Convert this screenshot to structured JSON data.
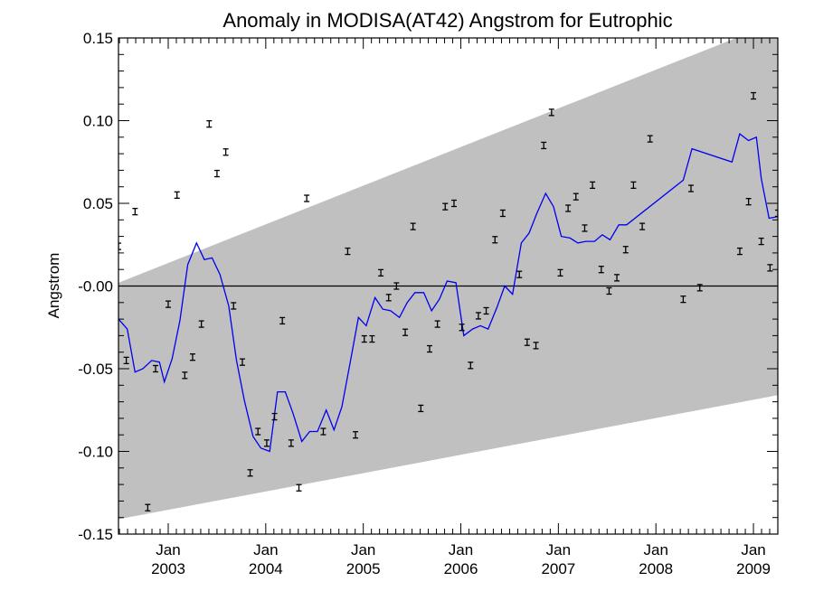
{
  "chart_data": {
    "type": "line",
    "title": "Anomaly in MODISA(AT42) Angstrom for Eutrophic",
    "ylabel": "Angstrom",
    "xlabel": "",
    "xlim": [
      2002.49,
      2009.25
    ],
    "ylim": [
      -0.15,
      0.15
    ],
    "y_ticks": [
      {
        "value": 0.15,
        "label": "0.15"
      },
      {
        "value": 0.1,
        "label": "0.10"
      },
      {
        "value": 0.05,
        "label": "0.05"
      },
      {
        "value": 0.0,
        "label": "-0.00"
      },
      {
        "value": -0.05,
        "label": "-0.05"
      },
      {
        "value": -0.1,
        "label": "-0.10"
      },
      {
        "value": -0.15,
        "label": "-0.15"
      }
    ],
    "x_ticks": [
      {
        "value": 2003.0,
        "month": "Jan",
        "year": "2003"
      },
      {
        "value": 2004.0,
        "month": "Jan",
        "year": "2004"
      },
      {
        "value": 2005.0,
        "month": "Jan",
        "year": "2005"
      },
      {
        "value": 2006.0,
        "month": "Jan",
        "year": "2006"
      },
      {
        "value": 2007.0,
        "month": "Jan",
        "year": "2007"
      },
      {
        "value": 2008.0,
        "month": "Jan",
        "year": "2008"
      },
      {
        "value": 2009.0,
        "month": "Jan",
        "year": "2009"
      }
    ],
    "zero_line": 0.0,
    "band": {
      "lower": [
        [
          2002.49,
          -0.141
        ],
        [
          2009.25,
          -0.066
        ]
      ],
      "upper": [
        [
          2002.49,
          0.002
        ],
        [
          2009.25,
          0.16
        ]
      ]
    },
    "series": [
      {
        "color": "#0000ee",
        "type": "line",
        "points": [
          [
            2002.49,
            -0.02
          ],
          [
            2002.58,
            -0.026
          ],
          [
            2002.66,
            -0.052
          ],
          [
            2002.74,
            -0.05
          ],
          [
            2002.83,
            -0.045
          ],
          [
            2002.91,
            -0.046
          ],
          [
            2002.96,
            -0.058
          ],
          [
            2003.04,
            -0.044
          ],
          [
            2003.12,
            -0.021
          ],
          [
            2003.2,
            0.013
          ],
          [
            2003.29,
            0.026
          ],
          [
            2003.37,
            0.016
          ],
          [
            2003.45,
            0.017
          ],
          [
            2003.53,
            0.007
          ],
          [
            2003.62,
            -0.012
          ],
          [
            2003.7,
            -0.045
          ],
          [
            2003.78,
            -0.069
          ],
          [
            2003.87,
            -0.091
          ],
          [
            2003.95,
            -0.098
          ],
          [
            2004.04,
            -0.1
          ],
          [
            2004.12,
            -0.064
          ],
          [
            2004.2,
            -0.064
          ],
          [
            2004.28,
            -0.077
          ],
          [
            2004.37,
            -0.094
          ],
          [
            2004.45,
            -0.088
          ],
          [
            2004.53,
            -0.088
          ],
          [
            2004.62,
            -0.075
          ],
          [
            2004.7,
            -0.087
          ],
          [
            2004.78,
            -0.073
          ],
          [
            2004.86,
            -0.048
          ],
          [
            2004.95,
            -0.019
          ],
          [
            2005.03,
            -0.024
          ],
          [
            2005.12,
            -0.007
          ],
          [
            2005.2,
            -0.014
          ],
          [
            2005.28,
            -0.015
          ],
          [
            2005.37,
            -0.019
          ],
          [
            2005.45,
            -0.01
          ],
          [
            2005.53,
            -0.004
          ],
          [
            2005.62,
            -0.004
          ],
          [
            2005.7,
            -0.015
          ],
          [
            2005.78,
            -0.008
          ],
          [
            2005.86,
            0.003
          ],
          [
            2005.95,
            0.002
          ],
          [
            2006.03,
            -0.03
          ],
          [
            2006.12,
            -0.026
          ],
          [
            2006.2,
            -0.024
          ],
          [
            2006.28,
            -0.026
          ],
          [
            2006.37,
            -0.013
          ],
          [
            2006.45,
            0.0
          ],
          [
            2006.53,
            -0.005
          ],
          [
            2006.62,
            0.026
          ],
          [
            2006.7,
            0.032
          ],
          [
            2006.78,
            0.044
          ],
          [
            2006.87,
            0.056
          ],
          [
            2006.95,
            0.048
          ],
          [
            2007.03,
            0.03
          ],
          [
            2007.12,
            0.029
          ],
          [
            2007.2,
            0.026
          ],
          [
            2007.28,
            0.027
          ],
          [
            2007.37,
            0.027
          ],
          [
            2007.45,
            0.031
          ],
          [
            2007.53,
            0.028
          ],
          [
            2007.62,
            0.037
          ],
          [
            2007.7,
            0.037
          ],
          [
            2008.28,
            0.064
          ],
          [
            2008.37,
            0.083
          ],
          [
            2008.78,
            0.075
          ],
          [
            2008.86,
            0.092
          ],
          [
            2008.95,
            0.088
          ],
          [
            2009.03,
            0.09
          ],
          [
            2009.08,
            0.065
          ],
          [
            2009.16,
            0.041
          ],
          [
            2009.25,
            0.042
          ]
        ]
      },
      {
        "color": "#000000",
        "type": "errorbar-points",
        "points": [
          [
            2002.49,
            0.024
          ],
          [
            2002.57,
            -0.045
          ],
          [
            2002.66,
            0.045
          ],
          [
            2002.79,
            -0.134
          ],
          [
            2002.87,
            -0.05
          ],
          [
            2003.0,
            -0.011
          ],
          [
            2003.09,
            0.055
          ],
          [
            2003.17,
            -0.054
          ],
          [
            2003.25,
            -0.043
          ],
          [
            2003.34,
            -0.023
          ],
          [
            2003.42,
            0.098
          ],
          [
            2003.5,
            0.068
          ],
          [
            2003.59,
            0.081
          ],
          [
            2003.67,
            -0.012
          ],
          [
            2003.76,
            -0.046
          ],
          [
            2003.84,
            -0.113
          ],
          [
            2003.92,
            -0.088
          ],
          [
            2004.01,
            -0.095
          ],
          [
            2004.09,
            -0.079
          ],
          [
            2004.17,
            -0.021
          ],
          [
            2004.34,
            -0.122
          ],
          [
            2004.42,
            0.053
          ],
          [
            2004.26,
            -0.095
          ],
          [
            2004.59,
            -0.088
          ],
          [
            2004.84,
            0.021
          ],
          [
            2004.92,
            -0.09
          ],
          [
            2005.01,
            -0.032
          ],
          [
            2005.09,
            -0.032
          ],
          [
            2005.18,
            0.008
          ],
          [
            2005.26,
            -0.007
          ],
          [
            2005.34,
            0.0
          ],
          [
            2005.43,
            -0.028
          ],
          [
            2005.51,
            0.036
          ],
          [
            2005.59,
            -0.074
          ],
          [
            2005.68,
            -0.038
          ],
          [
            2005.76,
            -0.023
          ],
          [
            2005.84,
            0.048
          ],
          [
            2005.93,
            0.05
          ],
          [
            2006.01,
            -0.025
          ],
          [
            2006.1,
            -0.048
          ],
          [
            2006.18,
            -0.018
          ],
          [
            2006.26,
            -0.015
          ],
          [
            2006.35,
            0.028
          ],
          [
            2006.43,
            0.044
          ],
          [
            2006.6,
            0.007
          ],
          [
            2006.68,
            -0.034
          ],
          [
            2006.77,
            -0.036
          ],
          [
            2006.85,
            0.085
          ],
          [
            2006.93,
            0.105
          ],
          [
            2007.02,
            0.008
          ],
          [
            2007.1,
            0.047
          ],
          [
            2007.18,
            0.054
          ],
          [
            2007.27,
            0.035
          ],
          [
            2007.35,
            0.061
          ],
          [
            2007.44,
            0.01
          ],
          [
            2007.52,
            -0.003
          ],
          [
            2007.6,
            0.005
          ],
          [
            2007.69,
            0.022
          ],
          [
            2007.77,
            0.061
          ],
          [
            2007.86,
            0.036
          ],
          [
            2007.94,
            0.089
          ],
          [
            2008.28,
            -0.008
          ],
          [
            2008.36,
            0.059
          ],
          [
            2008.45,
            -0.001
          ],
          [
            2008.86,
            0.021
          ],
          [
            2008.95,
            0.051
          ],
          [
            2009.0,
            0.115
          ],
          [
            2009.08,
            0.027
          ],
          [
            2009.17,
            0.011
          ],
          [
            2009.25,
            0.044
          ]
        ]
      }
    ],
    "grid": false,
    "band_color": "#c0c0c0"
  }
}
